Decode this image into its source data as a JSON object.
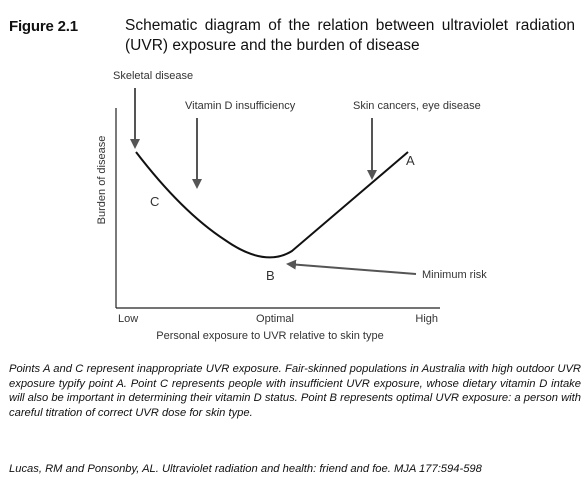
{
  "figure": {
    "label": "Figure 2.1",
    "title": "Schematic diagram of the relation between ultraviolet radiation (UVR) exposure and the burden of disease"
  },
  "diagram": {
    "y_axis_label": "Burden of disease",
    "x_axis_label": "Personal exposure to UVR relative to skin type",
    "x_ticks": [
      "Low",
      "Optimal",
      "High"
    ],
    "annotations": {
      "skeletal": "Skeletal disease",
      "vitamin_d": "Vitamin D insufficiency",
      "skin_cancer": "Skin cancers, eye disease",
      "minimum_risk": "Minimum risk"
    },
    "points": {
      "a": "A",
      "b": "B",
      "c": "C"
    }
  },
  "caption": "Points A and C represent inappropriate UVR exposure. Fair-skinned populations in Australia with high outdoor UVR exposure typify point A. Point C represents people with insufficient UVR exposure, whose dietary vitamin D intake  will also be important in determining their vitamin D status. Point B represents optimal UVR exposure: a person with careful titration of correct UVR dose for skin type.",
  "citation": "Lucas, RM and Ponsonby, AL. Ultraviolet radiation and health: friend and foe. MJA 177:594-598"
}
